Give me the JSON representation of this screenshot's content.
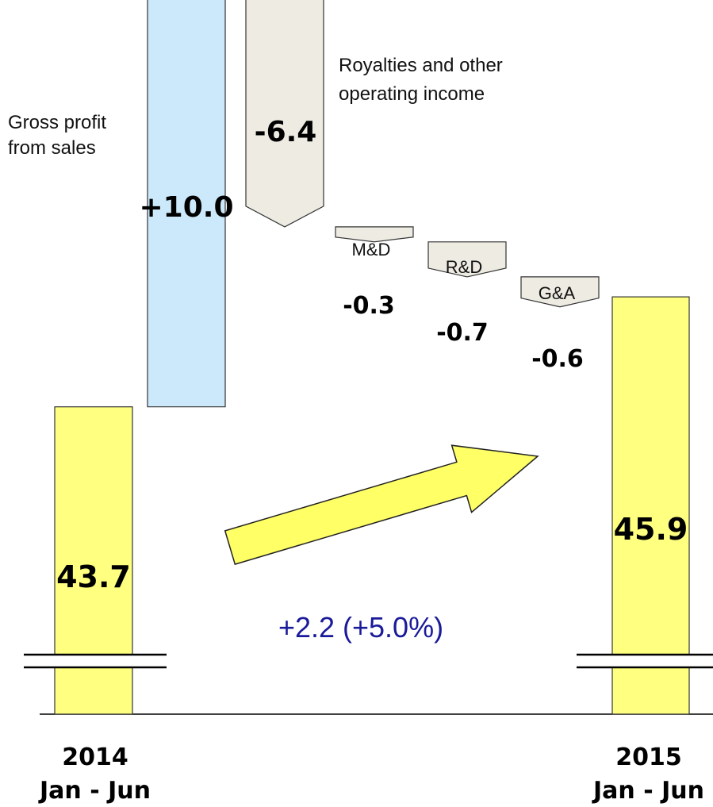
{
  "chart_data": {
    "type": "waterfall",
    "title": "",
    "unit": "",
    "colors": {
      "total": "#ffff80",
      "increase": "#cce9fb",
      "decrease": "#edebe2",
      "arrow": "#ffff66",
      "delta_text": "#1a1a9a"
    },
    "start": {
      "value": 43.7,
      "value_label": "43.7",
      "year": "2014",
      "period": "Jan - Jun"
    },
    "steps": [
      {
        "name": "Gross profit\nfrom sales",
        "value": 10.0,
        "value_label": "+10.0"
      },
      {
        "name": "Royalties and other\noperating income",
        "value": -6.4,
        "value_label": "-6.4"
      },
      {
        "name": "M&D",
        "value": -0.3,
        "value_label": "-0.3"
      },
      {
        "name": "R&D",
        "value": -0.7,
        "value_label": "-0.7"
      },
      {
        "name": "G&A",
        "value": -0.6,
        "value_label": "-0.6"
      }
    ],
    "end": {
      "value": 45.9,
      "value_label": "45.9",
      "year": "2015",
      "period": "Jan - Jun"
    },
    "change_label": "+2.2 (+5.0%)",
    "axis_break": true
  }
}
